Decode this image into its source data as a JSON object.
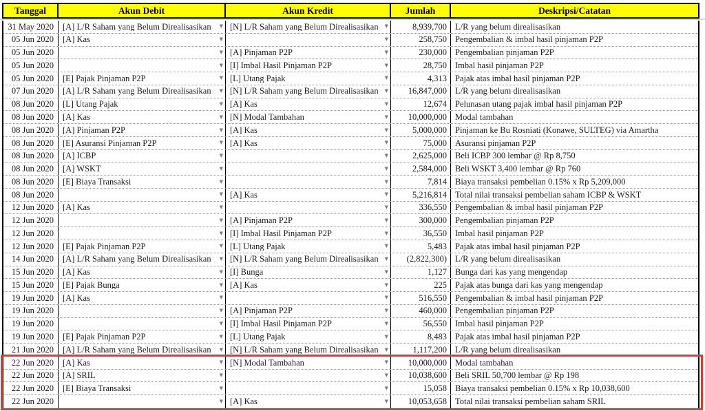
{
  "table": {
    "columns": [
      {
        "key": "date",
        "label": "Tanggal"
      },
      {
        "key": "debit",
        "label": "Akun Debit"
      },
      {
        "key": "credit",
        "label": "Akun Kredit"
      },
      {
        "key": "amount",
        "label": "Jumlah"
      },
      {
        "key": "description",
        "label": "Deskripsi/Catatan"
      }
    ],
    "rows": [
      {
        "date": "31 May 2020",
        "debit": "[A] L/R Saham yang Belum Direalisasikan",
        "credit": "[N] L/R Saham yang Belum Direalisasikan",
        "amount": "8,939,700",
        "description": "L/R yang belum direalisasikan",
        "highlighted": false
      },
      {
        "date": "05 Jun 2020",
        "debit": "[A] Kas",
        "credit": "",
        "amount": "258,750",
        "description": "Pengembalian & imbal hasil pinjaman P2P",
        "highlighted": false
      },
      {
        "date": "05 Jun 2020",
        "debit": "",
        "credit": "[A] Pinjaman P2P",
        "amount": "230,000",
        "description": "Pengembalian pinjaman P2P",
        "highlighted": false
      },
      {
        "date": "05 Jun 2020",
        "debit": "",
        "credit": "[I] Imbal Hasil Pinjaman P2P",
        "amount": "28,750",
        "description": "Imbal hasil pinjaman P2P",
        "highlighted": false
      },
      {
        "date": "05 Jun 2020",
        "debit": "[E] Pajak Pinjaman P2P",
        "credit": "[L] Utang Pajak",
        "amount": "4,313",
        "description": "Pajak atas imbal hasil pinjaman P2P",
        "highlighted": false
      },
      {
        "date": "07 Jun 2020",
        "debit": "[A] L/R Saham yang Belum Direalisasikan",
        "credit": "[N] L/R Saham yang Belum Direalisasikan",
        "amount": "16,847,000",
        "description": "L/R yang belum direalisasikan",
        "highlighted": false
      },
      {
        "date": "08 Jun 2020",
        "debit": "[L] Utang Pajak",
        "credit": "[A] Kas",
        "amount": "12,674",
        "description": "Pelunasan utang pajak imbal hasil pinjaman P2P",
        "highlighted": false
      },
      {
        "date": "08 Jun 2020",
        "debit": "[A] Kas",
        "credit": "[N] Modal Tambahan",
        "amount": "10,000,000",
        "description": "Modal tambahan",
        "highlighted": false
      },
      {
        "date": "08 Jun 2020",
        "debit": "[A] Pinjaman P2P",
        "credit": "[A] Kas",
        "amount": "5,000,000",
        "description": "Pinjaman ke Bu Rosniati (Konawe, SULTEG) via Amartha",
        "highlighted": false
      },
      {
        "date": "08 Jun 2020",
        "debit": "[E] Asuransi Pinjaman P2P",
        "credit": "[A] Kas",
        "amount": "75,000",
        "description": "Asuransi pinjaman P2P",
        "highlighted": false
      },
      {
        "date": "08 Jun 2020",
        "debit": "[A] ICBP",
        "credit": "",
        "amount": "2,625,000",
        "description": "Beli ICBP 300 lembar @ Rp 8,750",
        "highlighted": false
      },
      {
        "date": "08 Jun 2020",
        "debit": "[A] WSKT",
        "credit": "",
        "amount": "2,584,000",
        "description": "Beli WSKT 3,400 lembar @ Rp 760",
        "highlighted": false
      },
      {
        "date": "08 Jun 2020",
        "debit": "[E] Biaya Transaksi",
        "credit": "",
        "amount": "7,814",
        "description": "Biaya transaksi pembelian 0.15% x Rp 5,209,000",
        "highlighted": false
      },
      {
        "date": "08 Jun 2020",
        "debit": "",
        "credit": "[A] Kas",
        "amount": "5,216,814",
        "description": "Total nilai transaksi pembelian saham ICBP & WSKT",
        "highlighted": false
      },
      {
        "date": "12 Jun 2020",
        "debit": "[A] Kas",
        "credit": "",
        "amount": "336,550",
        "description": "Pengembalian & imbal hasil pinjaman P2P",
        "highlighted": false
      },
      {
        "date": "12 Jun 2020",
        "debit": "",
        "credit": "[A] Pinjaman P2P",
        "amount": "300,000",
        "description": "Pengembalian pinjaman P2P",
        "highlighted": false
      },
      {
        "date": "12 Jun 2020",
        "debit": "",
        "credit": "[I] Imbal Hasil Pinjaman P2P",
        "amount": "36,550",
        "description": "Imbal hasil pinjaman P2P",
        "highlighted": false
      },
      {
        "date": "12 Jun 2020",
        "debit": "[E] Pajak Pinjaman P2P",
        "credit": "[L] Utang Pajak",
        "amount": "5,483",
        "description": "Pajak atas imbal hasil pinjaman P2P",
        "highlighted": false
      },
      {
        "date": "14 Jun 2020",
        "debit": "[A] L/R Saham yang Belum Direalisasikan",
        "credit": "[N] L/R Saham yang Belum Direalisasikan",
        "amount": "(2,822,300)",
        "description": "L/R yang belum direalisasikan",
        "highlighted": false
      },
      {
        "date": "15 Jun 2020",
        "debit": "[A] Kas",
        "credit": "[I] Bunga",
        "amount": "1,127",
        "description": "Bunga dari kas yang mengendap",
        "highlighted": false
      },
      {
        "date": "15 Jun 2020",
        "debit": "[E] Pajak Bunga",
        "credit": "[A] Kas",
        "amount": "225",
        "description": "Pajak atas bunga dari kas yang mengendap",
        "highlighted": false
      },
      {
        "date": "19 Jun 2020",
        "debit": "[A] Kas",
        "credit": "",
        "amount": "516,550",
        "description": "Pengembalian & imbal hasil pinjaman P2P",
        "highlighted": false
      },
      {
        "date": "19 Jun 2020",
        "debit": "",
        "credit": "[A] Pinjaman P2P",
        "amount": "460,000",
        "description": "Pengembalian pinjaman P2P",
        "highlighted": false
      },
      {
        "date": "19 Jun 2020",
        "debit": "",
        "credit": "[I] Imbal Hasil Pinjaman P2P",
        "amount": "56,550",
        "description": "Imbal hasil pinjaman P2P",
        "highlighted": false
      },
      {
        "date": "19 Jun 2020",
        "debit": "[E] Pajak Pinjaman P2P",
        "credit": "[L] Utang Pajak",
        "amount": "8,483",
        "description": "Pajak atas imbal hasil pinjaman P2P",
        "highlighted": false
      },
      {
        "date": "21 Jun 2020",
        "debit": "[A] L/R Saham yang Belum Direalisasikan",
        "credit": "[N] L/R Saham yang Belum Direalisasikan",
        "amount": "1,117,200",
        "description": "L/R yang belum direalisasikan",
        "highlighted": false
      },
      {
        "date": "22 Jun 2020",
        "debit": "[A] Kas",
        "credit": "[N] Modal Tambahan",
        "amount": "10,000,000",
        "description": "Modal tambahan",
        "highlighted": true
      },
      {
        "date": "22 Jun 2020",
        "debit": "[A] SRIL",
        "credit": "",
        "amount": "10,038,600",
        "description": "Beli SRIL 50,700 lembar @ Rp 198",
        "highlighted": true
      },
      {
        "date": "22 Jun 2020",
        "debit": "[E] Biaya Transaksi",
        "credit": "",
        "amount": "15,058",
        "description": "Biaya transaksi pembelian 0.15% x Rp 10,038,600",
        "highlighted": true
      },
      {
        "date": "22 Jun 2020",
        "debit": "",
        "credit": "[A] Kas",
        "amount": "10,053,658",
        "description": "Total nilai transaksi pembelian saham SRIL",
        "highlighted": true
      }
    ]
  },
  "icons": {
    "dropdown_glyph": "▼",
    "dropdown_name": "dropdown-arrow-icon"
  },
  "colors": {
    "header_bg": "#ffff00",
    "header_text": "#000000",
    "grid_line": "#000000",
    "row_divider": "#929292",
    "highlight_border": "#e03a2b",
    "frozen_divider": "#d6d6d6"
  }
}
